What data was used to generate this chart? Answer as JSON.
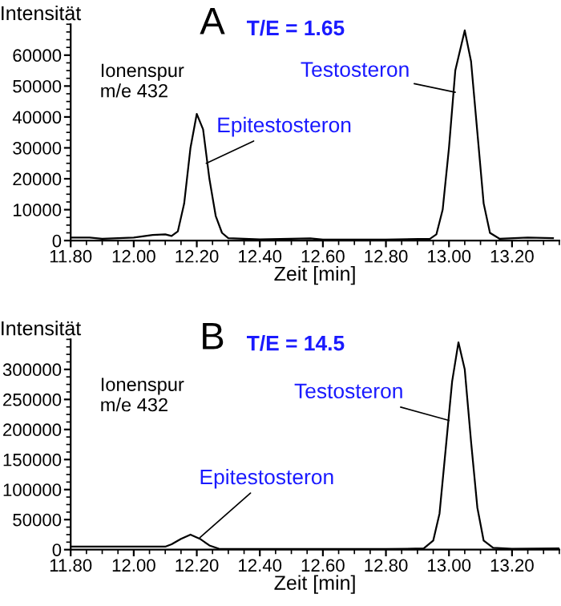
{
  "chart_data": [
    {
      "type": "line",
      "title": "A",
      "xlabel": "Zeit [min]",
      "ylabel": "Intensität",
      "annotations": [
        "Ionenspur\nm/e 432",
        "T/E = 1.65",
        {
          "text": "Epitestosteron",
          "x": 12.23,
          "y": 25000
        },
        {
          "text": "Testosteron",
          "x": 13.02,
          "y": 48000
        }
      ],
      "series": [
        {
          "color": "#000000",
          "x": [
            11.8,
            11.86,
            11.9,
            12.0,
            12.06,
            12.1,
            12.12,
            12.14,
            12.16,
            12.18,
            12.2,
            12.22,
            12.24,
            12.26,
            12.28,
            12.3,
            12.4,
            12.56,
            12.6,
            12.8,
            12.94,
            12.96,
            12.98,
            13.0,
            13.02,
            13.05,
            13.07,
            13.09,
            13.11,
            13.13,
            13.16,
            13.25,
            13.33
          ],
          "values": [
            1000,
            1000,
            600,
            1000,
            1800,
            2000,
            1500,
            3000,
            12000,
            30000,
            41000,
            36000,
            20000,
            8000,
            2500,
            800,
            400,
            700,
            300,
            300,
            600,
            2000,
            10000,
            30000,
            55000,
            68000,
            58000,
            35000,
            12000,
            2500,
            600,
            1000,
            800
          ]
        }
      ],
      "xlim": [
        11.8,
        13.35
      ],
      "xticks": [
        {
          "value": 11.8,
          "label": "11.80"
        },
        {
          "value": 12.0,
          "label": "12.00"
        },
        {
          "value": 12.2,
          "label": "12.20"
        },
        {
          "value": 12.4,
          "label": "12.40"
        },
        {
          "value": 12.6,
          "label": "12.60"
        },
        {
          "value": 12.8,
          "label": "12.80"
        },
        {
          "value": 13.0,
          "label": "13.00"
        },
        {
          "value": 13.2,
          "label": "13.20"
        }
      ],
      "ylim": [
        0,
        70000
      ],
      "yticks": [
        0,
        10000,
        20000,
        30000,
        40000,
        50000,
        60000
      ],
      "grid": false,
      "legend": false,
      "marker": "none",
      "line_style": "solid"
    },
    {
      "type": "line",
      "title": "B",
      "xlabel": "Zeit [min]",
      "ylabel": "Intensität",
      "annotations": [
        "Ionenspur\nm/e 432",
        "T/E = 14.5",
        {
          "text": "Epitestosteron",
          "x": 12.21,
          "y": 20000
        },
        {
          "text": "Testosteron",
          "x": 13.0,
          "y": 215000
        }
      ],
      "series": [
        {
          "color": "#000000",
          "x": [
            11.8,
            12.0,
            12.1,
            12.12,
            12.15,
            12.18,
            12.21,
            12.24,
            12.27,
            12.4,
            12.8,
            12.92,
            12.95,
            12.97,
            12.99,
            13.01,
            13.03,
            13.05,
            13.07,
            13.09,
            13.11,
            13.14,
            13.2,
            13.35
          ],
          "values": [
            5000,
            5000,
            5000,
            9000,
            18000,
            25000,
            18000,
            7000,
            1500,
            1000,
            1000,
            2000,
            15000,
            60000,
            170000,
            280000,
            345000,
            300000,
            180000,
            70000,
            15000,
            3000,
            1500,
            2000
          ]
        }
      ],
      "xlim": [
        11.8,
        13.35
      ],
      "xticks": [
        {
          "value": 11.8,
          "label": "11.80"
        },
        {
          "value": 12.0,
          "label": "12.00"
        },
        {
          "value": 12.2,
          "label": "12.20"
        },
        {
          "value": 12.4,
          "label": "12.40"
        },
        {
          "value": 12.6,
          "label": "12.60"
        },
        {
          "value": 12.8,
          "label": "12.80"
        },
        {
          "value": 13.0,
          "label": "13.00"
        },
        {
          "value": 13.2,
          "label": "13.20"
        }
      ],
      "ylim": [
        0,
        350000
      ],
      "yticks": [
        0,
        50000,
        100000,
        150000,
        200000,
        250000,
        300000
      ],
      "grid": false,
      "legend": false,
      "marker": "none",
      "line_style": "solid"
    }
  ]
}
